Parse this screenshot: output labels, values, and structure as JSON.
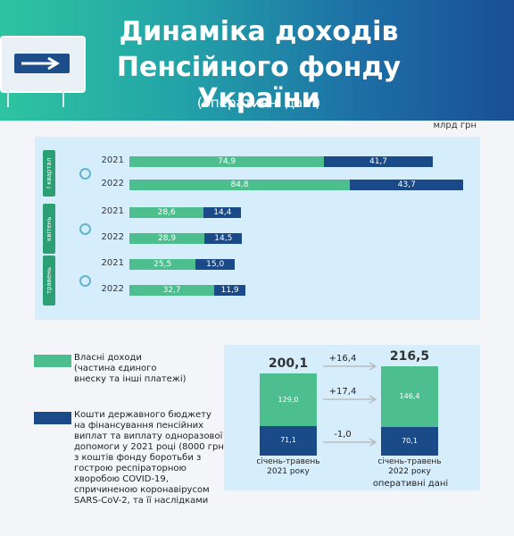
{
  "header": {
    "title_line1": "Динаміка доходів",
    "title_line2": "Пенсійного фонду України",
    "subtitle": "(оперативні дані)"
  },
  "unit": "млрд грн",
  "colors": {
    "own": "#4dbf8e",
    "budget": "#1b4a88",
    "category": "#2c9f74"
  },
  "legend": {
    "own": "Власні доходи (частина єдиного внеску та інші платежі)",
    "own_lines": [
      "Власні доходи",
      "(частина єдиного",
      "внеску та інші платежі)"
    ],
    "budget": "Кошти державного бюджету на фінансування пенсійних виплат та виплату одноразової допомоги у 2021 році (8000 грн) з коштів фонду боротьби з гострою респіраторною хворобою COVID-19, спричиненою коронавірусом SARS-CoV-2, та її наслідками",
    "budget_lines": [
      "Кошти державного бюджету",
      "на фінансування пенсійних",
      "виплат та виплату одноразової",
      "допомоги у 2021 році (8000 грн)",
      "з коштів фонду боротьби з",
      "гострою респіраторною",
      "хворобою COVID-19,",
      "спричиненою коронавірусом",
      "SARS-CoV-2, та її наслідками"
    ]
  },
  "chart_data": [
    {
      "type": "bar",
      "orientation": "horizontal",
      "stacked": true,
      "groups": [
        "І квартал",
        "квітень",
        "травень"
      ],
      "categories": [
        "2021",
        "2022",
        "2021",
        "2022",
        "2021",
        "2022"
      ],
      "series": [
        {
          "name": "Власні доходи",
          "values": [
            74.9,
            84.8,
            28.6,
            28.9,
            25.5,
            32.7
          ]
        },
        {
          "name": "Кошти державного бюджету",
          "values": [
            41.7,
            43.7,
            14.4,
            14.5,
            15.0,
            11.9
          ]
        }
      ],
      "value_labels": [
        [
          "74,9",
          "84,8",
          "28,6",
          "28,9",
          "25,5",
          "32,7"
        ],
        [
          "41,7",
          "43,7",
          "14,4",
          "14,5",
          "15,0",
          "11,9"
        ]
      ],
      "xlim": [
        0,
        130
      ]
    },
    {
      "type": "bar",
      "stacked": true,
      "categories": [
        "січень-травень 2021 року",
        "січень-травень 2022 року"
      ],
      "category_lines": [
        [
          "січень-травень",
          "2021 року"
        ],
        [
          "січень-травень",
          "2022 року"
        ]
      ],
      "series": [
        {
          "name": "Власні доходи",
          "values": [
            129.0,
            146.4
          ]
        },
        {
          "name": "Кошти державного бюджету",
          "values": [
            71.1,
            70.1
          ]
        }
      ],
      "value_labels": [
        [
          "129,0",
          "146,4"
        ],
        [
          "71,1",
          "70,1"
        ]
      ],
      "totals": [
        "200,1",
        "216,5"
      ],
      "total_values": [
        200.1,
        216.5
      ],
      "changes": [
        "+16,4",
        "+17,4",
        "-1,0"
      ],
      "note": "оперативні дані"
    }
  ]
}
